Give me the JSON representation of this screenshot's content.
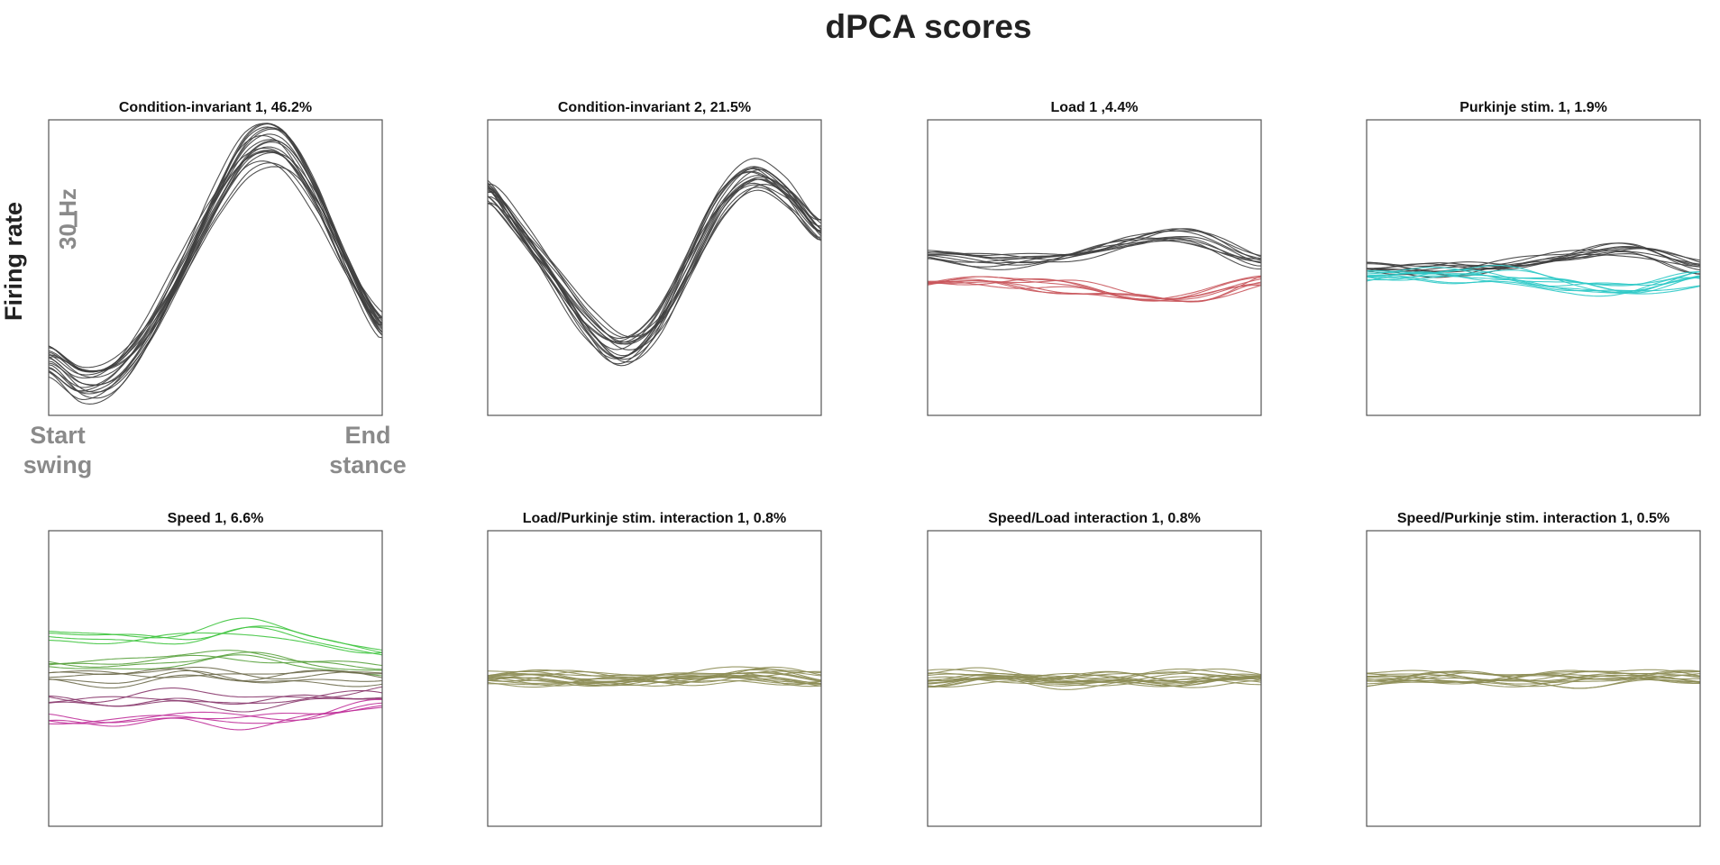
{
  "figure": {
    "title": "dPCA scores",
    "ylabel": "Firing rate",
    "scale_bar_label": "30 Hz",
    "scale_bar_value_hz": 30,
    "x_start_label": [
      "Start",
      "swing"
    ],
    "x_end_label": [
      "End",
      "stance"
    ]
  },
  "colors": {
    "condition_invariant": "#3f3f3f",
    "load_a": "#3f3f3f",
    "load_b": "#c9575c",
    "purkinje_a": "#3f3f3f",
    "purkinje_b": "#2ec9c6",
    "speed_1": "#3ec43e",
    "speed_2": "#5aa23e",
    "speed_3": "#6e6c4c",
    "speed_4": "#8a3a6e",
    "speed_5": "#c0309a",
    "interaction": "#8d8d55",
    "axis": "#555555"
  },
  "chart_data": [
    {
      "type": "line",
      "title": "Condition-invariant 1, 46.2%",
      "xlim": [
        0,
        1
      ],
      "ylim": [
        -150,
        150
      ],
      "series": [
        {
          "color": "condition_invariant",
          "count": 20,
          "x": [
            0,
            0.1,
            0.2,
            0.3,
            0.4,
            0.5,
            0.6,
            0.7,
            0.8,
            0.9,
            1.0
          ],
          "values": [
            -95,
            -118,
            -108,
            -65,
            0,
            70,
            122,
            125,
            75,
            0,
            -60
          ]
        }
      ]
    },
    {
      "type": "line",
      "title": "Condition-invariant 2, 21.5%",
      "xlim": [
        0,
        1
      ],
      "ylim": [
        -150,
        150
      ],
      "series": [
        {
          "color": "condition_invariant",
          "count": 18,
          "x": [
            0,
            0.1,
            0.2,
            0.3,
            0.4,
            0.5,
            0.6,
            0.7,
            0.8,
            0.9,
            1.0
          ],
          "values": [
            85,
            40,
            -10,
            -60,
            -88,
            -65,
            0,
            70,
            100,
            80,
            40
          ]
        }
      ]
    },
    {
      "type": "line",
      "title": "Load 1 ,4.4%",
      "xlim": [
        0,
        1
      ],
      "ylim": [
        -150,
        150
      ],
      "series": [
        {
          "color": "load_a",
          "count": 10,
          "x": [
            0,
            0.2,
            0.4,
            0.6,
            0.8,
            1.0
          ],
          "values": [
            10,
            8,
            12,
            25,
            30,
            8
          ]
        },
        {
          "color": "load_b",
          "count": 8,
          "x": [
            0,
            0.2,
            0.4,
            0.6,
            0.8,
            1.0
          ],
          "values": [
            -18,
            -16,
            -22,
            -32,
            -34,
            -14
          ]
        }
      ]
    },
    {
      "type": "line",
      "title": "Purkinje stim. 1, 1.9%",
      "xlim": [
        0,
        1
      ],
      "ylim": [
        -150,
        150
      ],
      "series": [
        {
          "color": "purkinje_a",
          "count": 10,
          "x": [
            0,
            0.2,
            0.4,
            0.6,
            0.8,
            1.0
          ],
          "values": [
            1,
            0,
            3,
            12,
            20,
            2
          ]
        },
        {
          "color": "purkinje_b",
          "count": 10,
          "x": [
            0,
            0.2,
            0.4,
            0.6,
            0.8,
            1.0
          ],
          "values": [
            -8,
            -6,
            -8,
            -18,
            -22,
            -8
          ]
        }
      ]
    },
    {
      "type": "line",
      "title": "Speed 1, 6.6%",
      "xlim": [
        0,
        1
      ],
      "ylim": [
        -150,
        150
      ],
      "series": [
        {
          "color": "speed_1",
          "count": 4,
          "x": [
            0,
            0.2,
            0.4,
            0.6,
            0.8,
            1.0
          ],
          "values": [
            42,
            40,
            42,
            50,
            38,
            25
          ]
        },
        {
          "color": "speed_2",
          "count": 4,
          "x": [
            0,
            0.2,
            0.4,
            0.6,
            0.8,
            1.0
          ],
          "values": [
            20,
            18,
            22,
            26,
            20,
            10
          ]
        },
        {
          "color": "speed_3",
          "count": 5,
          "x": [
            0,
            0.2,
            0.4,
            0.6,
            0.8,
            1.0
          ],
          "values": [
            2,
            0,
            4,
            0,
            2,
            0
          ]
        },
        {
          "color": "speed_4",
          "count": 4,
          "x": [
            0,
            0.2,
            0.4,
            0.6,
            0.8,
            1.0
          ],
          "values": [
            -22,
            -24,
            -18,
            -24,
            -20,
            -15
          ]
        },
        {
          "color": "speed_5",
          "count": 4,
          "x": [
            0,
            0.2,
            0.4,
            0.6,
            0.8,
            1.0
          ],
          "values": [
            -36,
            -40,
            -32,
            -38,
            -32,
            -22
          ]
        }
      ]
    },
    {
      "type": "line",
      "title": "Load/Purkinje stim. interaction 1, 0.8%",
      "xlim": [
        0,
        1
      ],
      "ylim": [
        -150,
        150
      ],
      "series": [
        {
          "color": "interaction",
          "count": 16,
          "x": [
            0,
            0.2,
            0.4,
            0.6,
            0.8,
            1.0
          ],
          "values": [
            0,
            1,
            0,
            0,
            4,
            0
          ]
        }
      ]
    },
    {
      "type": "line",
      "title": "Speed/Load interaction 1, 0.8%",
      "xlim": [
        0,
        1
      ],
      "ylim": [
        -150,
        150
      ],
      "series": [
        {
          "color": "interaction",
          "count": 16,
          "x": [
            0,
            0.2,
            0.4,
            0.6,
            0.8,
            1.0
          ],
          "values": [
            0,
            1,
            -1,
            1,
            0,
            0
          ]
        }
      ]
    },
    {
      "type": "line",
      "title": "Speed/Purkinje stim. interaction 1, 0.5%",
      "xlim": [
        0,
        1
      ],
      "ylim": [
        -150,
        150
      ],
      "series": [
        {
          "color": "interaction",
          "count": 14,
          "x": [
            0,
            0.2,
            0.4,
            0.6,
            0.8,
            1.0
          ],
          "values": [
            0,
            0,
            0,
            0,
            2,
            0
          ]
        }
      ]
    }
  ]
}
